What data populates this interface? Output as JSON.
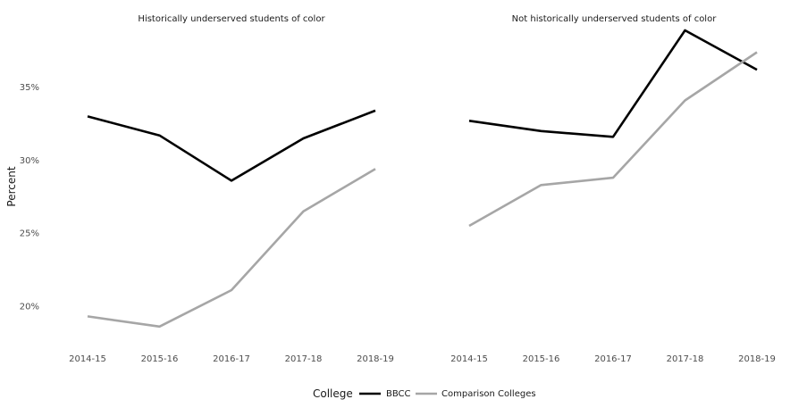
{
  "chart_data": {
    "type": "line",
    "ylabel": "Percent",
    "yticks": [
      0.2,
      0.25,
      0.3,
      0.35
    ],
    "ytick_labels": [
      "20%",
      "25%",
      "30%",
      "35%"
    ],
    "ylim": [
      0.17,
      0.4
    ],
    "categories": [
      "2014-15",
      "2015-16",
      "2016-17",
      "2017-18",
      "2018-19"
    ],
    "grid": false,
    "legend": {
      "title": "College",
      "position": "bottom",
      "entries": [
        {
          "label": "BBCC",
          "color": "#000000"
        },
        {
          "label": "Comparison Colleges",
          "color": "#a6a6a6"
        }
      ]
    },
    "panels": [
      {
        "title": "Historically underserved students of color",
        "series": [
          {
            "name": "BBCC",
            "color": "#000000",
            "values": [
              0.33,
              0.317,
              0.286,
              0.315,
              0.334
            ]
          },
          {
            "name": "Comparison Colleges",
            "color": "#a6a6a6",
            "values": [
              0.193,
              0.186,
              0.211,
              0.265,
              0.294
            ]
          }
        ]
      },
      {
        "title": "Not historically underserved students of color",
        "series": [
          {
            "name": "BBCC",
            "color": "#000000",
            "values": [
              0.327,
              0.32,
              0.316,
              0.389,
              0.362
            ]
          },
          {
            "name": "Comparison Colleges",
            "color": "#a6a6a6",
            "values": [
              0.255,
              0.283,
              0.288,
              0.341,
              0.374
            ]
          }
        ]
      }
    ]
  }
}
